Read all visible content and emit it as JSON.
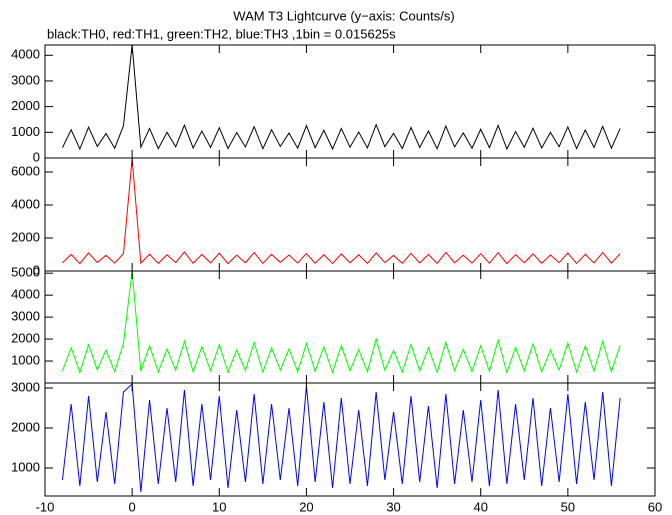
{
  "chart_data": [
    {
      "type": "line",
      "title": "WAM T3 Lightcurve (y−axis: Counts/s)",
      "subtitle": "black:TH0, red:TH1, green:TH2, blue:TH3 ,1bin = 0.015625s",
      "x": [
        -8,
        -7,
        -6,
        -5,
        -4,
        -3,
        -2,
        -1,
        0,
        1,
        2,
        3,
        4,
        5,
        6,
        7,
        8,
        9,
        10,
        11,
        12,
        13,
        14,
        15,
        16,
        17,
        18,
        19,
        20,
        21,
        22,
        23,
        24,
        25,
        26,
        27,
        28,
        29,
        30,
        31,
        32,
        33,
        34,
        35,
        36,
        37,
        38,
        39,
        40,
        41,
        42,
        43,
        44,
        45,
        46,
        47,
        48,
        49,
        50,
        51,
        52,
        53,
        54,
        55,
        56
      ],
      "series": [
        {
          "color": "#000000",
          "values": [
            400,
            1100,
            350,
            1200,
            450,
            950,
            380,
            1250,
            4400,
            420,
            1150,
            360,
            1000,
            440,
            1280,
            390,
            1050,
            410,
            1180,
            370,
            990,
            430,
            1220,
            360,
            1100,
            450,
            970,
            380,
            1260,
            400,
            1080,
            350,
            1150,
            420,
            1010,
            390,
            1300,
            440,
            960,
            370,
            1190,
            410,
            1050,
            360,
            1240,
            430,
            980,
            380,
            1120,
            400,
            1270,
            350,
            1030,
            420,
            1160,
            390,
            1000,
            440,
            1210,
            370,
            1090,
            410,
            1230,
            380,
            1150
          ]
        }
      ],
      "xlim": [
        -10,
        60
      ],
      "xticks": [
        -10,
        0,
        10,
        20,
        30,
        40,
        50,
        60
      ],
      "ylim": [
        0,
        4400
      ],
      "yticks": [
        0,
        1000,
        2000,
        3000,
        4000
      ]
    },
    {
      "type": "line",
      "x": [
        -8,
        -7,
        -6,
        -5,
        -4,
        -3,
        -2,
        -1,
        0,
        1,
        2,
        3,
        4,
        5,
        6,
        7,
        8,
        9,
        10,
        11,
        12,
        13,
        14,
        15,
        16,
        17,
        18,
        19,
        20,
        21,
        22,
        23,
        24,
        25,
        26,
        27,
        28,
        29,
        30,
        31,
        32,
        33,
        34,
        35,
        36,
        37,
        38,
        39,
        40,
        41,
        42,
        43,
        44,
        45,
        46,
        47,
        48,
        49,
        50,
        51,
        52,
        53,
        54,
        55,
        56
      ],
      "series": [
        {
          "color": "#ff0000",
          "values": [
            500,
            1000,
            450,
            1100,
            520,
            950,
            480,
            1050,
            6800,
            470,
            1020,
            460,
            980,
            510,
            1150,
            470,
            1000,
            490,
            1080,
            450,
            960,
            500,
            1120,
            460,
            1010,
            520,
            970,
            480,
            1060,
            470,
            990,
            450,
            1040,
            500,
            980,
            460,
            1100,
            510,
            950,
            470,
            1070,
            490,
            1000,
            460,
            1130,
            500,
            960,
            480,
            1050,
            470,
            1110,
            450,
            990,
            500,
            1040,
            470,
            970,
            510,
            1090,
            460,
            1010,
            490,
            1120,
            480,
            1050
          ]
        }
      ],
      "xlim": [
        -10,
        60
      ],
      "xticks": [
        -10,
        0,
        10,
        20,
        30,
        40,
        50,
        60
      ],
      "ylim": [
        0,
        6850
      ],
      "yticks": [
        0,
        2000,
        4000,
        6000
      ]
    },
    {
      "type": "line",
      "x": [
        -8,
        -7,
        -6,
        -5,
        -4,
        -3,
        -2,
        -1,
        0,
        1,
        2,
        3,
        4,
        5,
        6,
        7,
        8,
        9,
        10,
        11,
        12,
        13,
        14,
        15,
        16,
        17,
        18,
        19,
        20,
        21,
        22,
        23,
        24,
        25,
        26,
        27,
        28,
        29,
        30,
        31,
        32,
        33,
        34,
        35,
        36,
        37,
        38,
        39,
        40,
        41,
        42,
        43,
        44,
        45,
        46,
        47,
        48,
        49,
        50,
        51,
        52,
        53,
        54,
        55,
        56
      ],
      "series": [
        {
          "color": "#00ff00",
          "values": [
            550,
            1600,
            480,
            1750,
            600,
            1500,
            520,
            1800,
            5100,
            540,
            1700,
            500,
            1550,
            580,
            1900,
            510,
            1650,
            560,
            1750,
            490,
            1500,
            570,
            1850,
            500,
            1600,
            590,
            1550,
            520,
            1800,
            540,
            1650,
            480,
            1700,
            560,
            1520,
            510,
            2000,
            580,
            1480,
            500,
            1750,
            550,
            1600,
            490,
            1850,
            570,
            1530,
            520,
            1700,
            540,
            1950,
            480,
            1620,
            560,
            1780,
            510,
            1500,
            590,
            1820,
            500,
            1680,
            550,
            1900,
            520,
            1720
          ]
        }
      ],
      "xlim": [
        -10,
        60
      ],
      "xticks": [
        -10,
        0,
        10,
        20,
        30,
        40,
        50,
        60
      ],
      "ylim": [
        0,
        5100
      ],
      "yticks": [
        1000,
        2000,
        3000,
        4000,
        5000
      ]
    },
    {
      "type": "line",
      "x": [
        -8,
        -7,
        -6,
        -5,
        -4,
        -3,
        -2,
        -1,
        0,
        1,
        2,
        3,
        4,
        5,
        6,
        7,
        8,
        9,
        10,
        11,
        12,
        13,
        14,
        15,
        16,
        17,
        18,
        19,
        20,
        21,
        22,
        23,
        24,
        25,
        26,
        27,
        28,
        29,
        30,
        31,
        32,
        33,
        34,
        35,
        36,
        37,
        38,
        39,
        40,
        41,
        42,
        43,
        44,
        45,
        46,
        47,
        48,
        49,
        50,
        51,
        52,
        53,
        54,
        55,
        56
      ],
      "series": [
        {
          "color": "#0000ff",
          "values": [
            700,
            2600,
            550,
            2800,
            650,
            2400,
            600,
            2900,
            3100,
            400,
            2700,
            600,
            2500,
            650,
            2950,
            550,
            2600,
            700,
            2800,
            500,
            2450,
            650,
            2850,
            600,
            2600,
            700,
            2500,
            550,
            3050,
            650,
            2650,
            500,
            2750,
            600,
            2450,
            550,
            2900,
            700,
            2400,
            600,
            2800,
            650,
            2550,
            500,
            2850,
            600,
            2450,
            650,
            2700,
            550,
            2950,
            600,
            2600,
            700,
            2750,
            550,
            2500,
            650,
            2850,
            600,
            2650,
            700,
            2900,
            550,
            2750
          ]
        }
      ],
      "xlim": [
        -10,
        60
      ],
      "xticks": [
        -10,
        0,
        10,
        20,
        30,
        40,
        50,
        60
      ],
      "ylim": [
        300,
        3125
      ],
      "yticks": [
        1000,
        2000,
        3000
      ]
    }
  ]
}
